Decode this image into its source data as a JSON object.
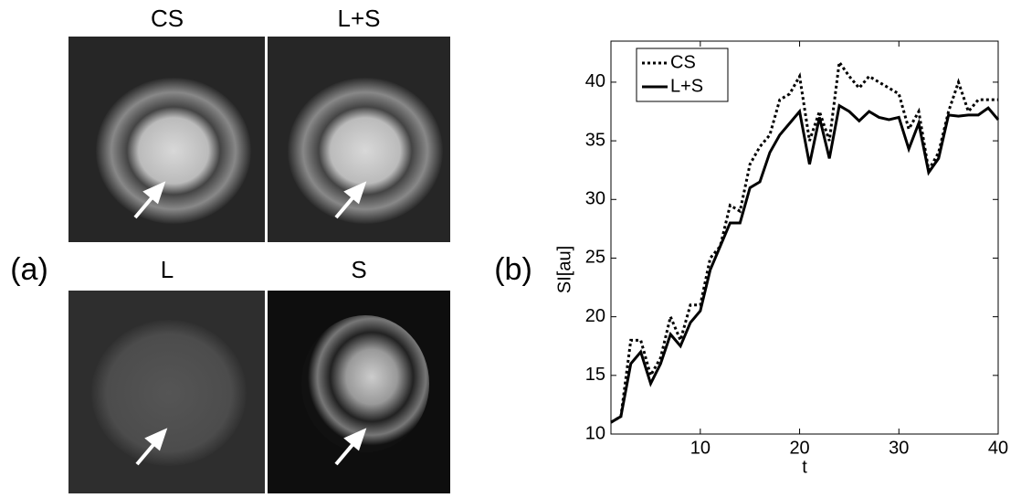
{
  "figure": {
    "panel_labels": [
      "(a)",
      "(b)"
    ],
    "image_titles": [
      "CS",
      "L+S",
      "L",
      "S"
    ]
  },
  "chart_data": {
    "type": "line",
    "x": [
      1,
      2,
      3,
      4,
      5,
      6,
      7,
      8,
      9,
      10,
      11,
      12,
      13,
      14,
      15,
      16,
      17,
      18,
      19,
      20,
      21,
      22,
      23,
      24,
      25,
      26,
      27,
      28,
      29,
      30,
      31,
      32,
      33,
      34,
      35,
      36,
      37,
      38,
      39,
      40
    ],
    "series": [
      {
        "name": "CS",
        "color": "#000000",
        "dash": "dotted",
        "values": [
          11,
          11.5,
          18,
          18,
          15,
          16.5,
          20,
          18,
          21,
          21,
          25,
          26,
          29.5,
          29,
          33,
          34.5,
          35.5,
          38.5,
          39,
          40.5,
          35,
          37.5,
          35,
          41.7,
          40.5,
          39.5,
          40.5,
          40,
          39.5,
          39,
          36,
          37.5,
          32.5,
          34,
          37.5,
          40,
          37.5,
          38.5,
          38.5,
          38.5
        ]
      },
      {
        "name": "L+S",
        "color": "#000000",
        "dash": "solid",
        "values": [
          11,
          11.5,
          16,
          17,
          14.3,
          16,
          18.5,
          17.5,
          19.5,
          20.5,
          24,
          26,
          28,
          28,
          31,
          31.5,
          34,
          35.5,
          36.5,
          37.5,
          33,
          37,
          33.5,
          38,
          37.5,
          36.7,
          37.5,
          37,
          36.8,
          37,
          34.3,
          36.5,
          32.3,
          33.5,
          37.2,
          37.1,
          37.2,
          37.2,
          37.8,
          36.8
        ]
      }
    ],
    "x_label": "t",
    "y_label": "SI[au]",
    "xlim": [
      1,
      40
    ],
    "xticks": [
      10,
      20,
      30,
      40
    ],
    "ylim": [
      10,
      43.5
    ],
    "yticks": [
      10,
      15,
      20,
      25,
      30,
      35,
      40
    ],
    "legend": "top-left"
  }
}
